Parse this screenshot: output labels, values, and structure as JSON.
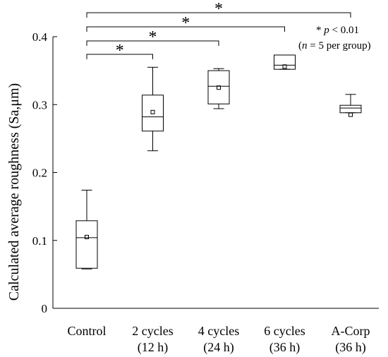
{
  "chart_data": {
    "type": "box",
    "ylabel": "Calculated average roughness (Sa,μm)",
    "ylim": [
      0,
      0.4
    ],
    "yticks": [
      0,
      0.1,
      0.2,
      0.3,
      0.4
    ],
    "ytick_labels": [
      "0",
      "0.1",
      "0.2",
      "0.3",
      "0.4"
    ],
    "categories": [
      {
        "line1": "Control",
        "line2": ""
      },
      {
        "line1": "2 cycles",
        "line2": "(12 h)"
      },
      {
        "line1": "4 cycles",
        "line2": "(24 h)"
      },
      {
        "line1": "6 cycles",
        "line2": "(36 h)"
      },
      {
        "line1": "A-Corp",
        "line2": "(36 h)"
      }
    ],
    "boxes": [
      {
        "min": 0.058,
        "q1": 0.059,
        "median": 0.104,
        "q3": 0.129,
        "max": 0.174,
        "mean": 0.105
      },
      {
        "min": 0.232,
        "q1": 0.261,
        "median": 0.282,
        "q3": 0.314,
        "max": 0.355,
        "mean": 0.289
      },
      {
        "min": 0.294,
        "q1": 0.301,
        "median": 0.327,
        "q3": 0.35,
        "max": 0.353,
        "mean": 0.325
      },
      {
        "min": 0.352,
        "q1": 0.352,
        "median": 0.358,
        "q3": 0.373,
        "max": 0.373,
        "mean": 0.356
      },
      {
        "min": 0.288,
        "q1": 0.288,
        "median": 0.295,
        "q3": 0.299,
        "max": 0.315,
        "mean": 0.285
      }
    ],
    "significance": [
      {
        "from": 0,
        "to": 1,
        "label": "*"
      },
      {
        "from": 0,
        "to": 2,
        "label": "*"
      },
      {
        "from": 0,
        "to": 3,
        "label": "*"
      },
      {
        "from": 0,
        "to": 4,
        "label": "*"
      }
    ],
    "annotation": {
      "star": "*",
      "p_label": "p",
      "p_rest": " < 0.01",
      "n_label": "n",
      "n_rest": " = 5 per group)",
      "open_paren": "("
    }
  }
}
